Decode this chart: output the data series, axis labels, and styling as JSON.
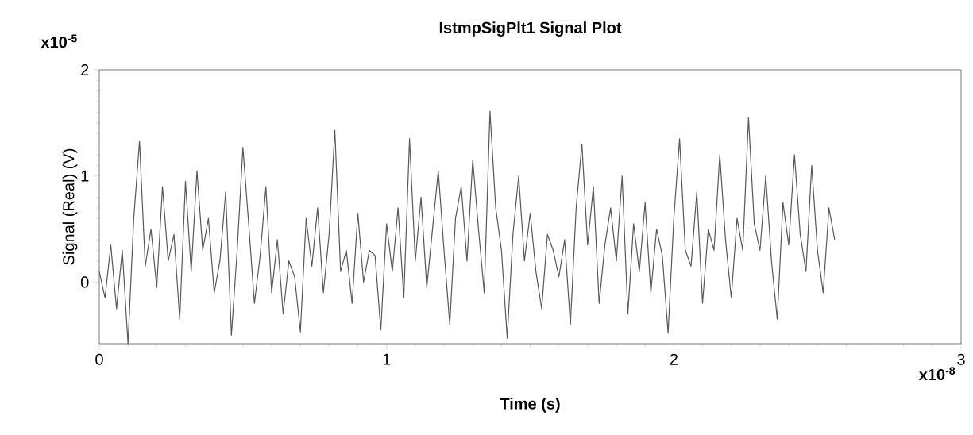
{
  "chart_data": {
    "type": "line",
    "title": "IstmpSigPlt1 Signal Plot",
    "xlabel": "Time (s)",
    "ylabel": "Signal (Real) (V)",
    "annotations": [
      "x10$^{-5}$",
      "x10$^{-8}$"
    ],
    "xlim": [
      0,
      3
    ],
    "ylim": [
      -0.58,
      2
    ],
    "xticks": [
      0,
      1,
      2,
      3
    ],
    "yticks": [
      0,
      1,
      2
    ],
    "grid": false,
    "marker": "none",
    "line_style": "solid",
    "series": [
      {
        "color": "#595959",
        "x": [
          0,
          0.02,
          0.04,
          0.06,
          0.08,
          0.1,
          0.12,
          0.14,
          0.16,
          0.18,
          0.2,
          0.22,
          0.24,
          0.26,
          0.28,
          0.3,
          0.32,
          0.34,
          0.36,
          0.38,
          0.4,
          0.42,
          0.44,
          0.46,
          0.48,
          0.5,
          0.52,
          0.54,
          0.56,
          0.58,
          0.6,
          0.62,
          0.64,
          0.66,
          0.68,
          0.7,
          0.72,
          0.74,
          0.76,
          0.78,
          0.8,
          0.82,
          0.84,
          0.86,
          0.88,
          0.9,
          0.92,
          0.94,
          0.96,
          0.98,
          1.0,
          1.02,
          1.04,
          1.06,
          1.08,
          1.1,
          1.12,
          1.14,
          1.16,
          1.18,
          1.2,
          1.22,
          1.24,
          1.26,
          1.28,
          1.3,
          1.32,
          1.34,
          1.36,
          1.38,
          1.4,
          1.42,
          1.44,
          1.46,
          1.48,
          1.5,
          1.52,
          1.54,
          1.56,
          1.58,
          1.6,
          1.62,
          1.64,
          1.66,
          1.68,
          1.7,
          1.72,
          1.74,
          1.76,
          1.78,
          1.8,
          1.82,
          1.84,
          1.86,
          1.88,
          1.9,
          1.92,
          1.94,
          1.96,
          1.98,
          2.0,
          2.02,
          2.04,
          2.06,
          2.08,
          2.1,
          2.12,
          2.14,
          2.16,
          2.18,
          2.2,
          2.22,
          2.24,
          2.26,
          2.28,
          2.3,
          2.32,
          2.34,
          2.36,
          2.38,
          2.4,
          2.42,
          2.44,
          2.46,
          2.48,
          2.5,
          2.52,
          2.54,
          2.56
        ],
        "values": [
          0.1,
          -0.15,
          0.35,
          -0.25,
          0.3,
          -0.58,
          0.6,
          1.33,
          0.15,
          0.5,
          -0.05,
          0.9,
          0.2,
          0.45,
          -0.35,
          0.95,
          0.1,
          1.05,
          0.3,
          0.6,
          -0.1,
          0.2,
          0.85,
          -0.5,
          0.3,
          1.27,
          0.55,
          -0.2,
          0.25,
          0.9,
          -0.1,
          0.4,
          -0.3,
          0.2,
          0.05,
          -0.47,
          0.6,
          0.15,
          0.7,
          -0.1,
          0.45,
          1.43,
          0.1,
          0.3,
          -0.2,
          0.65,
          0.0,
          0.3,
          0.25,
          -0.45,
          0.55,
          0.1,
          0.7,
          -0.15,
          1.35,
          0.2,
          0.8,
          -0.05,
          0.5,
          1.05,
          0.3,
          -0.4,
          0.6,
          0.9,
          0.2,
          1.15,
          0.5,
          -0.1,
          1.61,
          0.7,
          0.3,
          -0.53,
          0.45,
          1.0,
          0.2,
          0.65,
          0.1,
          -0.25,
          0.45,
          0.3,
          0.05,
          0.4,
          -0.4,
          0.7,
          1.3,
          0.35,
          0.9,
          -0.2,
          0.35,
          0.7,
          0.2,
          1.0,
          -0.3,
          0.55,
          0.1,
          0.75,
          -0.1,
          0.5,
          0.25,
          -0.48,
          0.6,
          1.35,
          0.3,
          0.15,
          0.85,
          -0.2,
          0.5,
          0.3,
          1.2,
          0.4,
          -0.15,
          0.6,
          0.3,
          1.55,
          0.55,
          0.3,
          1.0,
          0.2,
          -0.35,
          0.75,
          0.35,
          1.2,
          0.45,
          0.1,
          1.1,
          0.3,
          -0.1,
          0.7,
          0.4
        ]
      }
    ]
  }
}
